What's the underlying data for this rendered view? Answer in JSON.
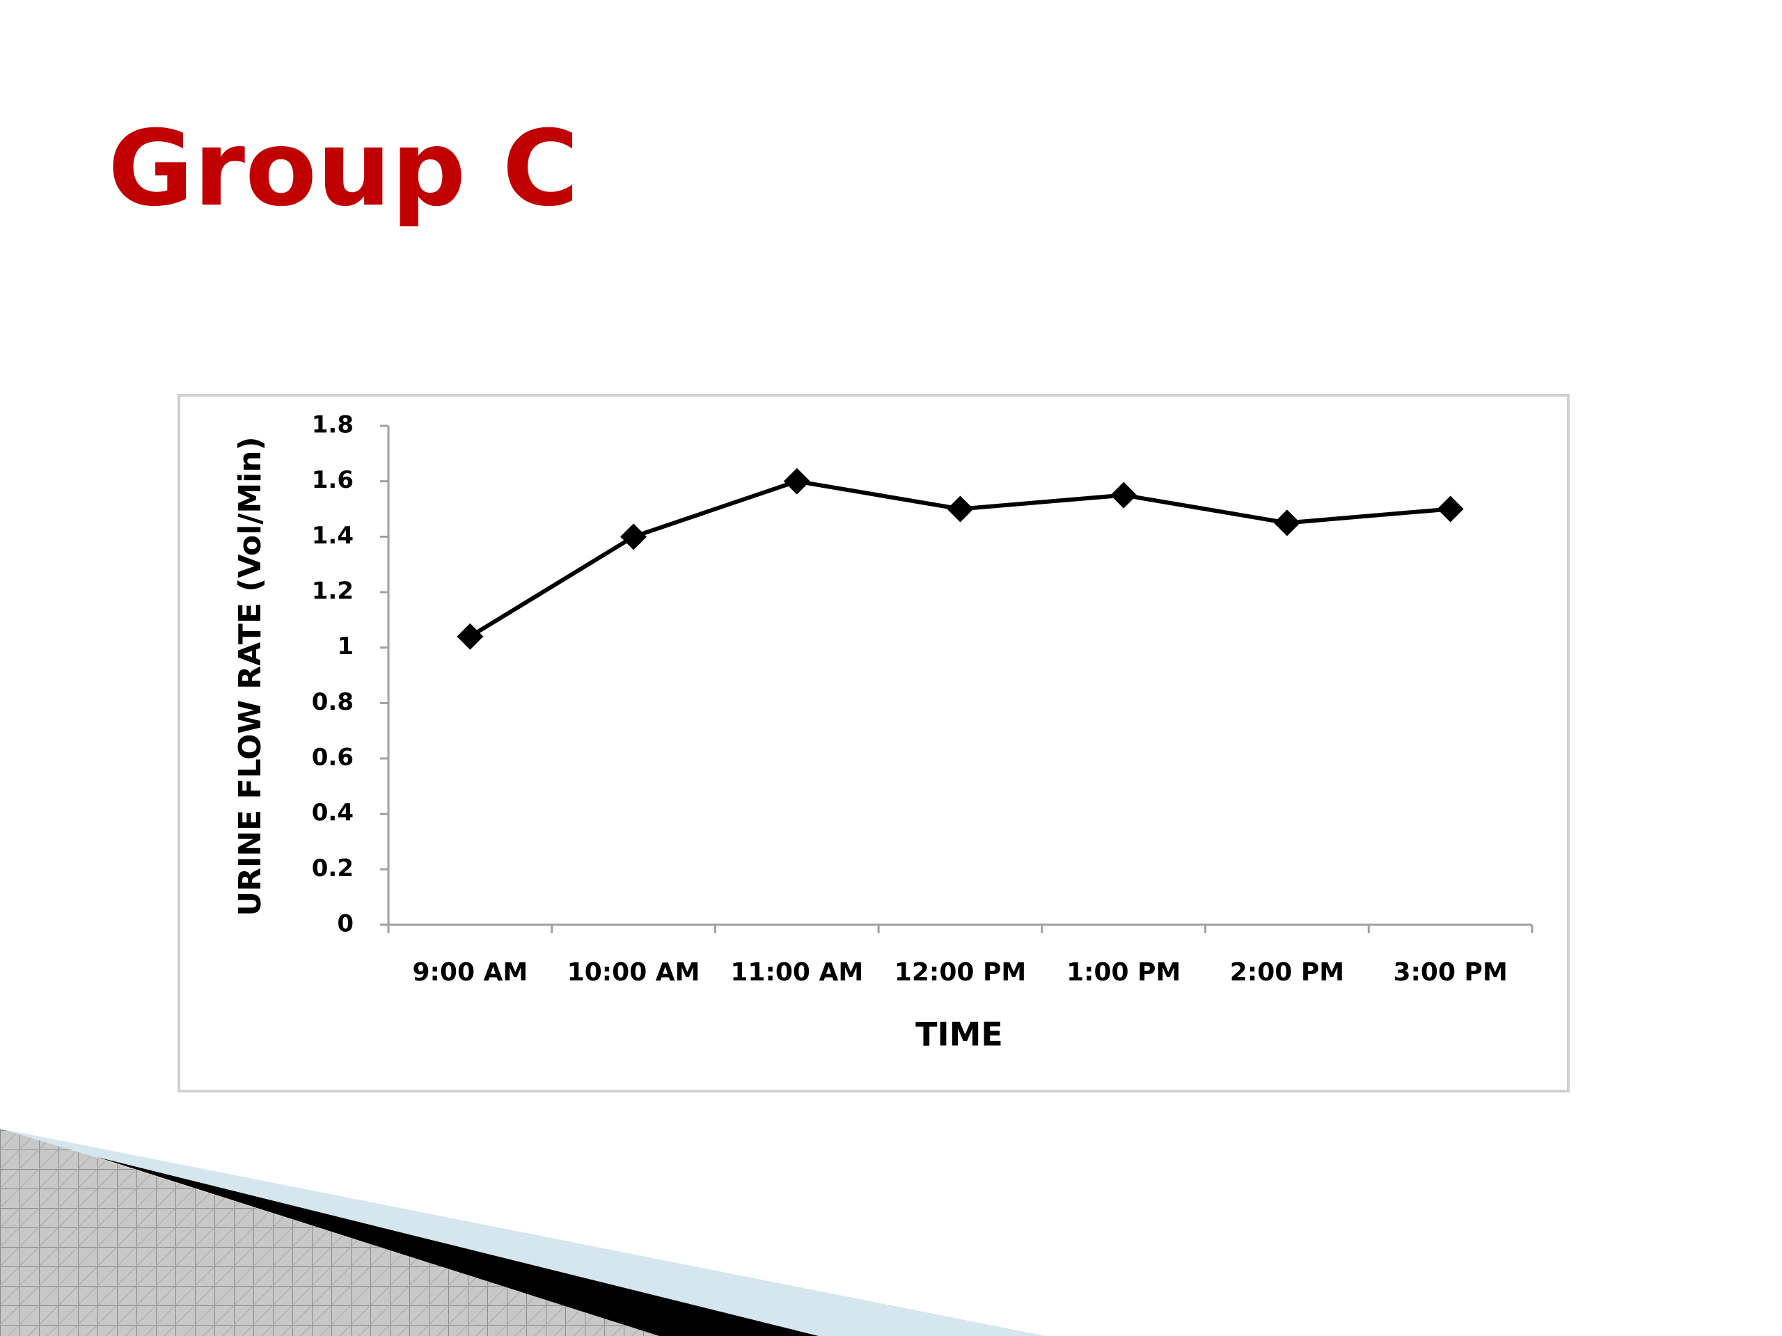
{
  "chart_data": {
    "type": "line",
    "title": "Group C",
    "x_label": "TIME",
    "y_label": "URINE FLOW RATE (Vol/Min)",
    "categories": [
      "9:00 AM",
      "10:00 AM",
      "11:00 AM",
      "12:00 PM",
      "1:00 PM",
      "2:00 PM",
      "3:00 PM"
    ],
    "series": [
      {
        "color": "#000000",
        "values": [
          1.04,
          1.4,
          1.6,
          1.5,
          1.55,
          1.45,
          1.5
        ]
      }
    ],
    "ylim": [
      0,
      1.8
    ],
    "yticks": [
      0,
      0.2,
      0.4,
      0.6,
      0.8,
      1,
      1.2,
      1.4,
      1.6,
      1.8
    ],
    "grid": false
  }
}
